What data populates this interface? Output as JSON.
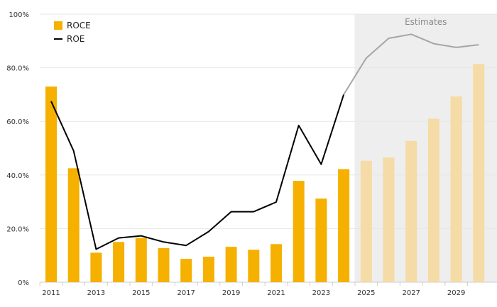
{
  "chart_data": {
    "type": "bar",
    "categories": [
      "2011",
      "2012",
      "2013",
      "2014",
      "2015",
      "2016",
      "2017",
      "2018",
      "2019",
      "2020",
      "2021",
      "2022",
      "2023",
      "2024",
      "2025",
      "2026",
      "2027",
      "2028",
      "2029",
      "2030"
    ],
    "x_tick_labels": [
      "2011",
      "2013",
      "2015",
      "2017",
      "2019",
      "2021",
      "2023",
      "2025",
      "2027",
      "2029"
    ],
    "y_tick_labels": [
      "0%",
      "20.0%",
      "40.0%",
      "60.0%",
      "80.0%",
      "100%"
    ],
    "ylim": [
      0,
      100
    ],
    "series": [
      {
        "name": "ROCE",
        "kind": "bar",
        "values": [
          73,
          42.5,
          11,
          15,
          16.5,
          12.7,
          8.7,
          9.5,
          13.2,
          12.1,
          14.2,
          37.8,
          31.2,
          42.2,
          45.3,
          46.5,
          52.7,
          61,
          69.3,
          81.4
        ]
      },
      {
        "name": "ROE",
        "kind": "line",
        "values": [
          67.5,
          49,
          12.3,
          16.5,
          17.3,
          15,
          13.7,
          18.9,
          26.3,
          26.3,
          29.9,
          58.5,
          44,
          70,
          83.6,
          91,
          92.5,
          89,
          87.6,
          88.6
        ]
      }
    ],
    "estimates": {
      "label": "Estimates",
      "start_category": "2025"
    },
    "grid": true,
    "legend": "top-left",
    "colors": {
      "bar": "#f5b000",
      "bar_estimate": "#f5dba5",
      "line": "#000000",
      "line_estimate": "#a5a5a5",
      "estimates_band": "#eeeeee",
      "grid": "#e6e6e6"
    }
  }
}
